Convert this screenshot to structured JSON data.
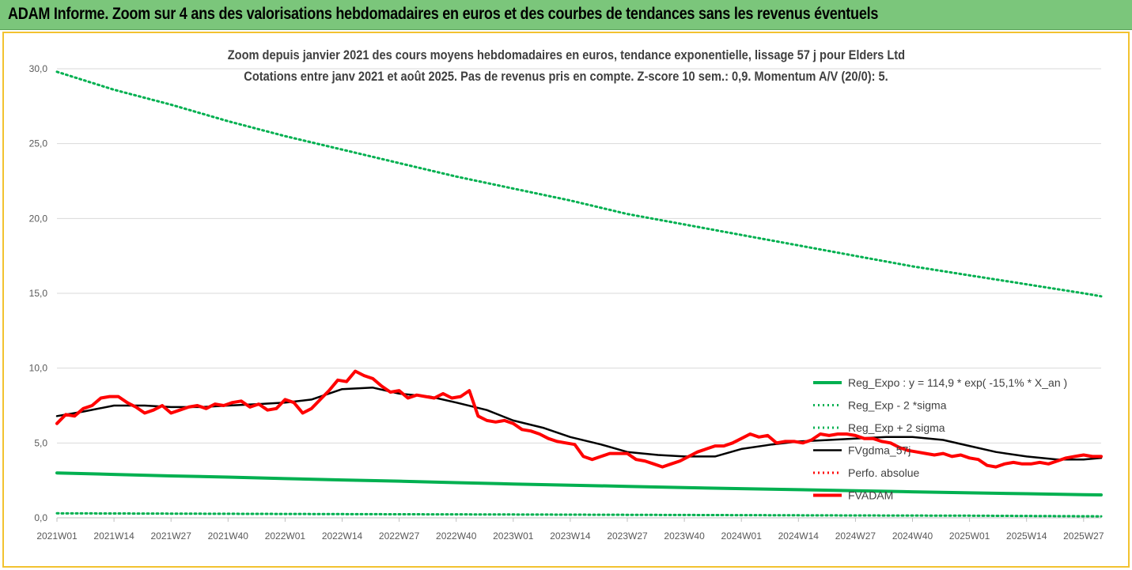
{
  "banner": {
    "title": "ADAM Informe. Zoom sur 4 ans des valorisations hebdomadaires en euros et des courbes de tendances sans les revenus éventuels"
  },
  "colors": {
    "banner_bg": "#7bc67b",
    "frame_border": "#f2c230",
    "reg_expo": "#00b050",
    "fvgdma": "#000000",
    "fvadam": "#ff0000",
    "perfo": "#ff0000"
  },
  "chart_data": {
    "type": "line",
    "title_line1": "Zoom depuis janvier 2021 des cours moyens hebdomadaires en euros, tendance exponentielle, lissage 57 j pour Elders Ltd",
    "title_line2": "Cotations entre janv 2021 et août 2025.  Pas de revenus pris en compte. Z-score 10 sem.: 0,9. Momentum A/V (20/0): 5.",
    "ylim": [
      0,
      30
    ],
    "yticks": [
      "0,0",
      "5,0",
      "10,0",
      "15,0",
      "20,0",
      "25,0",
      "30,0"
    ],
    "x_tick_labels": [
      "2021W01",
      "2021W14",
      "2021W27",
      "2021W40",
      "2022W01",
      "2022W14",
      "2022W27",
      "2022W40",
      "2023W01",
      "2023W14",
      "2023W27",
      "2023W40",
      "2024W01",
      "2024W14",
      "2024W27",
      "2024W40",
      "2025W01",
      "2025W14",
      "2025W27"
    ],
    "grid": true,
    "legend_position": "bottom-right",
    "series": [
      {
        "name": "Reg_Expo : y = 114,9 * exp( -15,1% *  X_an )",
        "style": "solid-thick",
        "x": [
          0,
          13,
          26,
          39,
          52,
          65,
          78,
          91,
          104,
          117,
          130,
          143,
          156,
          169,
          182,
          195,
          208,
          221,
          234,
          238
        ],
        "values": [
          3.0,
          2.9,
          2.8,
          2.72,
          2.62,
          2.53,
          2.45,
          2.35,
          2.26,
          2.18,
          2.1,
          2.02,
          1.95,
          1.88,
          1.81,
          1.74,
          1.67,
          1.61,
          1.55,
          1.53
        ]
      },
      {
        "name": "Reg_Exp - 2 *sigma",
        "style": "dotted",
        "x": [
          0,
          26,
          52,
          78,
          104,
          130,
          156,
          182,
          208,
          238
        ],
        "values": [
          0.3,
          0.28,
          0.26,
          0.24,
          0.22,
          0.2,
          0.18,
          0.16,
          0.14,
          0.1
        ]
      },
      {
        "name": "Reg_Exp + 2 sigma",
        "style": "dotted",
        "x": [
          0,
          13,
          26,
          39,
          52,
          65,
          78,
          91,
          104,
          117,
          130,
          143,
          156,
          169,
          182,
          195,
          208,
          221,
          234,
          238
        ],
        "values": [
          29.8,
          28.6,
          27.6,
          26.5,
          25.5,
          24.6,
          23.7,
          22.8,
          22.0,
          21.2,
          20.3,
          19.6,
          18.9,
          18.2,
          17.5,
          16.8,
          16.2,
          15.6,
          15.0,
          14.8
        ]
      },
      {
        "name": "FVgdma_57j",
        "style": "solid",
        "x": [
          0,
          6,
          13,
          20,
          26,
          33,
          39,
          46,
          52,
          58,
          65,
          72,
          78,
          85,
          91,
          98,
          104,
          111,
          117,
          124,
          130,
          137,
          143,
          150,
          156,
          163,
          169,
          176,
          182,
          189,
          195,
          202,
          208,
          214,
          221,
          228,
          234,
          238
        ],
        "values": [
          6.8,
          7.1,
          7.5,
          7.5,
          7.4,
          7.4,
          7.5,
          7.6,
          7.7,
          7.9,
          8.6,
          8.7,
          8.3,
          8.1,
          7.7,
          7.2,
          6.5,
          6.0,
          5.4,
          4.9,
          4.4,
          4.2,
          4.1,
          4.1,
          4.6,
          4.9,
          5.1,
          5.2,
          5.3,
          5.4,
          5.4,
          5.2,
          4.8,
          4.4,
          4.1,
          3.9,
          3.9,
          4.0
        ]
      },
      {
        "name": "Perfo. absolue",
        "style": "dotted",
        "x": [],
        "values": []
      },
      {
        "name": "FVADAM",
        "style": "solid-thick",
        "x": [
          0,
          2,
          4,
          6,
          8,
          10,
          12,
          14,
          16,
          18,
          20,
          22,
          24,
          26,
          28,
          30,
          32,
          34,
          36,
          38,
          40,
          42,
          44,
          46,
          48,
          50,
          52,
          54,
          56,
          58,
          60,
          62,
          64,
          66,
          68,
          70,
          72,
          74,
          76,
          78,
          80,
          82,
          84,
          86,
          88,
          90,
          92,
          94,
          96,
          98,
          100,
          102,
          104,
          106,
          108,
          110,
          112,
          114,
          116,
          118,
          120,
          122,
          124,
          126,
          128,
          130,
          132,
          134,
          136,
          138,
          140,
          142,
          144,
          146,
          148,
          150,
          152,
          154,
          156,
          158,
          160,
          162,
          164,
          166,
          168,
          170,
          172,
          174,
          176,
          178,
          180,
          182,
          184,
          186,
          188,
          190,
          192,
          194,
          196,
          198,
          200,
          202,
          204,
          206,
          208,
          210,
          212,
          214,
          216,
          218,
          220,
          222,
          224,
          226,
          228,
          230,
          232,
          234,
          236,
          238
        ],
        "values": [
          6.3,
          6.9,
          6.8,
          7.3,
          7.5,
          8.0,
          8.1,
          8.1,
          7.7,
          7.4,
          7.0,
          7.2,
          7.5,
          7.0,
          7.2,
          7.4,
          7.5,
          7.3,
          7.6,
          7.5,
          7.7,
          7.8,
          7.4,
          7.6,
          7.2,
          7.3,
          7.9,
          7.7,
          7.0,
          7.3,
          7.9,
          8.5,
          9.2,
          9.1,
          9.8,
          9.5,
          9.3,
          8.8,
          8.4,
          8.5,
          8.0,
          8.2,
          8.1,
          8.0,
          8.3,
          8.0,
          8.1,
          8.5,
          6.8,
          6.5,
          6.4,
          6.5,
          6.3,
          5.9,
          5.8,
          5.6,
          5.3,
          5.1,
          5.0,
          4.9,
          4.1,
          3.9,
          4.1,
          4.3,
          4.3,
          4.3,
          3.9,
          3.8,
          3.6,
          3.4,
          3.6,
          3.8,
          4.1,
          4.4,
          4.6,
          4.8,
          4.8,
          5.0,
          5.3,
          5.6,
          5.4,
          5.5,
          5.0,
          5.1,
          5.1,
          5.0,
          5.2,
          5.6,
          5.5,
          5.6,
          5.6,
          5.5,
          5.3,
          5.3,
          5.1,
          5.0,
          4.7,
          4.5,
          4.4,
          4.3,
          4.2,
          4.3,
          4.1,
          4.2,
          4.0,
          3.9,
          3.5,
          3.4,
          3.6,
          3.7,
          3.6,
          3.6,
          3.7,
          3.6,
          3.8,
          4.0,
          4.1,
          4.2,
          4.1,
          4.1
        ]
      }
    ]
  }
}
